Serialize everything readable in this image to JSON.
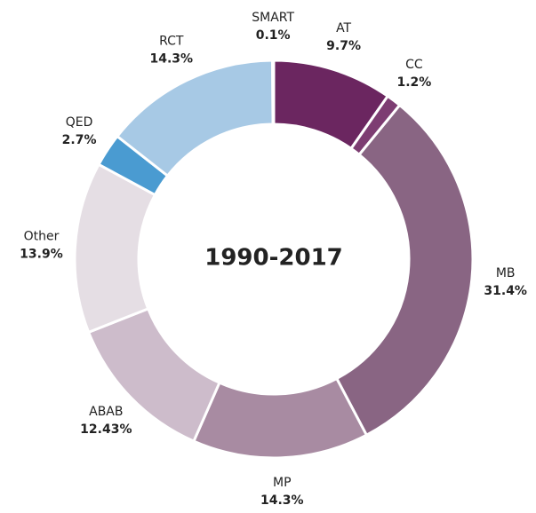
{
  "chart_data": {
    "type": "donut",
    "center_label": "1990-2017",
    "categories": [
      "AT",
      "CC",
      "MB",
      "MP",
      "ABAB",
      "Other",
      "QED",
      "RCT",
      "SMART"
    ],
    "values": [
      9.7,
      1.2,
      31.4,
      14.3,
      12.43,
      13.9,
      2.7,
      14.3,
      0.1
    ],
    "value_labels": [
      "9.7%",
      "1.2%",
      "31.4%",
      "14.3%",
      "12.43%",
      "13.9%",
      "2.7%",
      "14.3%",
      "0.1%"
    ],
    "colors": [
      "#6b2660",
      "#7d3d72",
      "#896583",
      "#a88ba2",
      "#cdbccb",
      "#e5dee4",
      "#4a9bd1",
      "#a7c9e5",
      "#d2e3f1"
    ]
  }
}
